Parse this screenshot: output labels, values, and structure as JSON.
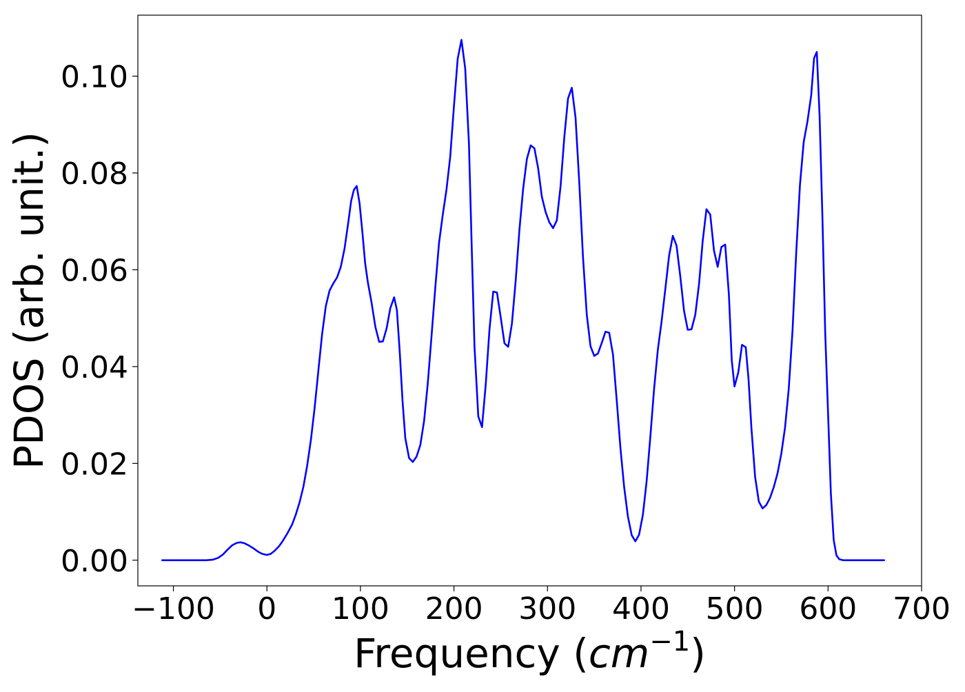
{
  "chart_data": {
    "type": "line",
    "title": "",
    "xlabel": "Frequency (cm⁻¹)",
    "xlabel_parts": {
      "prefix": "Frequency (",
      "unit_base": "cm",
      "unit_exp": "−1",
      "suffix": ")"
    },
    "ylabel": "PDOS (arb. unit.)",
    "xlim": [
      -138,
      700
    ],
    "ylim": [
      -0.0053,
      0.1126
    ],
    "grid": false,
    "line_color": "#0000ff",
    "x_ticks": [
      {
        "value": -100,
        "label": "−100"
      },
      {
        "value": 0,
        "label": "0"
      },
      {
        "value": 100,
        "label": "100"
      },
      {
        "value": 200,
        "label": "200"
      },
      {
        "value": 300,
        "label": "300"
      },
      {
        "value": 400,
        "label": "400"
      },
      {
        "value": 500,
        "label": "500"
      },
      {
        "value": 600,
        "label": "600"
      },
      {
        "value": 700,
        "label": "700"
      }
    ],
    "y_ticks": [
      {
        "value": 0.0,
        "label": "0.00"
      },
      {
        "value": 0.02,
        "label": "0.02"
      },
      {
        "value": 0.04,
        "label": "0.04"
      },
      {
        "value": 0.06,
        "label": "0.06"
      },
      {
        "value": 0.08,
        "label": "0.08"
      },
      {
        "value": 0.1,
        "label": "0.10"
      }
    ],
    "series": [
      {
        "points": [
          [
            -112,
            0.0
          ],
          [
            -100,
            0.0
          ],
          [
            -80,
            0.0
          ],
          [
            -65,
            0.0
          ],
          [
            -58,
            0.0001
          ],
          [
            -52,
            0.0005
          ],
          [
            -47,
            0.0012
          ],
          [
            -42,
            0.0022
          ],
          [
            -37,
            0.0031
          ],
          [
            -32,
            0.0036
          ],
          [
            -28,
            0.0037
          ],
          [
            -24,
            0.0035
          ],
          [
            -19,
            0.003
          ],
          [
            -14,
            0.0024
          ],
          [
            -9,
            0.0017
          ],
          [
            -5,
            0.0013
          ],
          [
            0,
            0.0011
          ],
          [
            4,
            0.0013
          ],
          [
            8,
            0.0019
          ],
          [
            13,
            0.0029
          ],
          [
            17,
            0.004
          ],
          [
            22,
            0.0056
          ],
          [
            27,
            0.0074
          ],
          [
            31,
            0.0095
          ],
          [
            35,
            0.012
          ],
          [
            39,
            0.0152
          ],
          [
            43,
            0.0195
          ],
          [
            47,
            0.0248
          ],
          [
            51,
            0.0314
          ],
          [
            55,
            0.0392
          ],
          [
            59,
            0.0467
          ],
          [
            63,
            0.0525
          ],
          [
            67,
            0.0557
          ],
          [
            71,
            0.0572
          ],
          [
            75,
            0.0584
          ],
          [
            79,
            0.0606
          ],
          [
            83,
            0.0644
          ],
          [
            87,
            0.0698
          ],
          [
            90,
            0.0742
          ],
          [
            93,
            0.0765
          ],
          [
            96,
            0.0773
          ],
          [
            99,
            0.0738
          ],
          [
            102,
            0.068
          ],
          [
            105,
            0.0614
          ],
          [
            108,
            0.0573
          ],
          [
            112,
            0.0531
          ],
          [
            116,
            0.0482
          ],
          [
            120,
            0.0451
          ],
          [
            124,
            0.0452
          ],
          [
            128,
            0.0479
          ],
          [
            132,
            0.0521
          ],
          [
            136,
            0.0543
          ],
          [
            139,
            0.0517
          ],
          [
            142,
            0.0431
          ],
          [
            145,
            0.0329
          ],
          [
            148,
            0.0252
          ],
          [
            152,
            0.0211
          ],
          [
            156,
            0.0203
          ],
          [
            160,
            0.0214
          ],
          [
            164,
            0.0238
          ],
          [
            168,
            0.0287
          ],
          [
            172,
            0.0365
          ],
          [
            176,
            0.0462
          ],
          [
            180,
            0.0563
          ],
          [
            184,
            0.0655
          ],
          [
            188,
            0.0713
          ],
          [
            192,
            0.0765
          ],
          [
            196,
            0.0834
          ],
          [
            200,
            0.0938
          ],
          [
            204,
            0.1036
          ],
          [
            208,
            0.1075
          ],
          [
            212,
            0.1016
          ],
          [
            216,
            0.0862
          ],
          [
            219,
            0.0645
          ],
          [
            222,
            0.0441
          ],
          [
            226,
            0.0297
          ],
          [
            230,
            0.0275
          ],
          [
            234,
            0.0363
          ],
          [
            238,
            0.0478
          ],
          [
            242,
            0.0555
          ],
          [
            246,
            0.0553
          ],
          [
            250,
            0.0502
          ],
          [
            254,
            0.0448
          ],
          [
            258,
            0.0441
          ],
          [
            262,
            0.0489
          ],
          [
            266,
            0.0577
          ],
          [
            270,
            0.0683
          ],
          [
            274,
            0.0768
          ],
          [
            278,
            0.0829
          ],
          [
            282,
            0.0857
          ],
          [
            286,
            0.0851
          ],
          [
            290,
            0.081
          ],
          [
            294,
            0.0751
          ],
          [
            298,
            0.0719
          ],
          [
            302,
            0.0698
          ],
          [
            306,
            0.0686
          ],
          [
            310,
            0.0702
          ],
          [
            314,
            0.0773
          ],
          [
            318,
            0.0874
          ],
          [
            322,
            0.0954
          ],
          [
            326,
            0.0976
          ],
          [
            330,
            0.0914
          ],
          [
            334,
            0.078
          ],
          [
            338,
            0.0626
          ],
          [
            342,
            0.0507
          ],
          [
            346,
            0.0442
          ],
          [
            350,
            0.0422
          ],
          [
            354,
            0.0427
          ],
          [
            358,
            0.0449
          ],
          [
            362,
            0.0472
          ],
          [
            366,
            0.047
          ],
          [
            370,
            0.0425
          ],
          [
            374,
            0.0331
          ],
          [
            378,
            0.0232
          ],
          [
            382,
            0.0151
          ],
          [
            386,
            0.009
          ],
          [
            390,
            0.0052
          ],
          [
            394,
            0.0039
          ],
          [
            398,
            0.0053
          ],
          [
            402,
            0.0094
          ],
          [
            406,
            0.0163
          ],
          [
            410,
            0.0255
          ],
          [
            414,
            0.0355
          ],
          [
            418,
            0.0435
          ],
          [
            422,
            0.0493
          ],
          [
            426,
            0.056
          ],
          [
            430,
            0.0629
          ],
          [
            434,
            0.067
          ],
          [
            438,
            0.065
          ],
          [
            442,
            0.0587
          ],
          [
            446,
            0.0515
          ],
          [
            450,
            0.0476
          ],
          [
            454,
            0.0477
          ],
          [
            458,
            0.0507
          ],
          [
            462,
            0.057
          ],
          [
            466,
            0.066
          ],
          [
            470,
            0.0725
          ],
          [
            474,
            0.0714
          ],
          [
            478,
            0.064
          ],
          [
            482,
            0.0606
          ],
          [
            486,
            0.0647
          ],
          [
            490,
            0.0652
          ],
          [
            494,
            0.0548
          ],
          [
            497,
            0.0413
          ],
          [
            500,
            0.0359
          ],
          [
            504,
            0.0388
          ],
          [
            508,
            0.0445
          ],
          [
            512,
            0.044
          ],
          [
            515,
            0.0373
          ],
          [
            518,
            0.0274
          ],
          [
            522,
            0.0172
          ],
          [
            526,
            0.0121
          ],
          [
            530,
            0.0107
          ],
          [
            534,
            0.0114
          ],
          [
            538,
            0.0129
          ],
          [
            542,
            0.0151
          ],
          [
            546,
            0.018
          ],
          [
            550,
            0.022
          ],
          [
            554,
            0.0274
          ],
          [
            558,
            0.0354
          ],
          [
            562,
            0.0475
          ],
          [
            566,
            0.0637
          ],
          [
            570,
            0.0776
          ],
          [
            574,
            0.0864
          ],
          [
            578,
            0.0907
          ],
          [
            582,
            0.0961
          ],
          [
            585,
            0.1037
          ],
          [
            588,
            0.105
          ],
          [
            591,
            0.0916
          ],
          [
            594,
            0.0706
          ],
          [
            597,
            0.047
          ],
          [
            600,
            0.0305
          ],
          [
            603,
            0.0138
          ],
          [
            606,
            0.0042
          ],
          [
            609,
            0.001
          ],
          [
            612,
            0.0002
          ],
          [
            616,
            0.0
          ],
          [
            630,
            0.0
          ],
          [
            645,
            0.0
          ],
          [
            660,
            0.0
          ]
        ]
      }
    ]
  }
}
